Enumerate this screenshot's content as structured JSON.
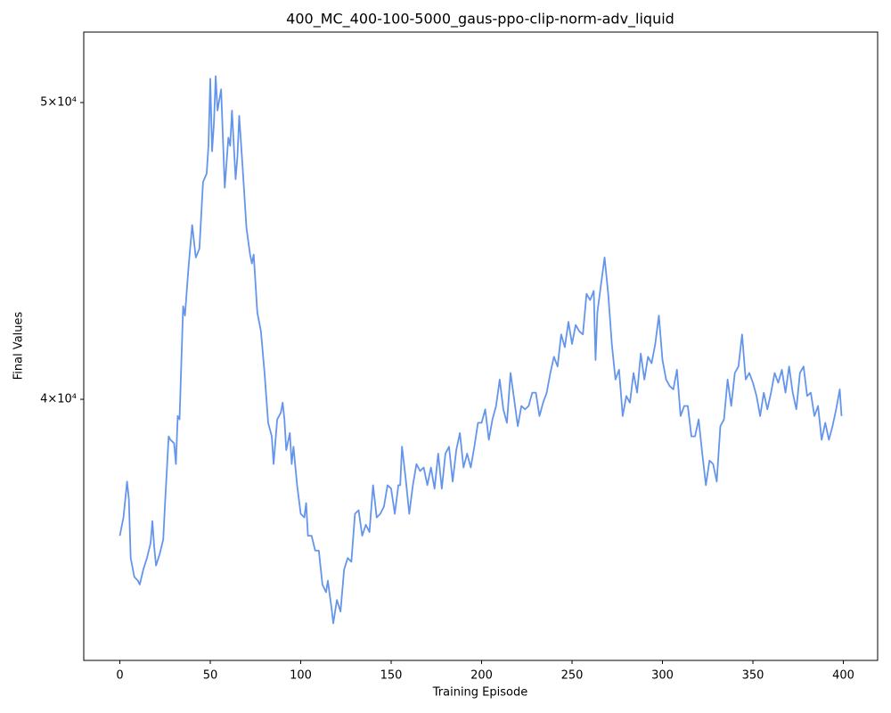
{
  "chart_data": {
    "type": "line",
    "title": "400_MC_400-100-5000_gaus-ppo-clip-norm-adv_liquid",
    "x_label": "Training Episode",
    "y_label": "Final Values",
    "y_scale": "log",
    "xlim": [
      -19.95,
      418.95
    ],
    "ylim": [
      32870,
      52720
    ],
    "xticks": [
      0,
      50,
      100,
      150,
      200,
      250,
      300,
      350,
      400
    ],
    "yticks": [
      {
        "value": 40000,
        "label": "4×10⁴"
      },
      {
        "value": 50000,
        "label": "5×10⁴"
      }
    ],
    "x": [
      0,
      2,
      4,
      5,
      6,
      8,
      10,
      11,
      13,
      15,
      17,
      18,
      19,
      20,
      22,
      24,
      25,
      27,
      28,
      30,
      31,
      32,
      33,
      35,
      36,
      38,
      40,
      42,
      44,
      46,
      48,
      49,
      50,
      51,
      52,
      53,
      54,
      56,
      58,
      60,
      61,
      62,
      64,
      65,
      66,
      68,
      70,
      72,
      73,
      74,
      76,
      78,
      80,
      82,
      84,
      85,
      87,
      89,
      90,
      91,
      92,
      94,
      95,
      96,
      98,
      100,
      102,
      103,
      104,
      106,
      108,
      110,
      112,
      114,
      115,
      117,
      118,
      120,
      122,
      124,
      126,
      128,
      130,
      132,
      134,
      136,
      138,
      140,
      142,
      144,
      146,
      148,
      150,
      152,
      154,
      155,
      156,
      158,
      160,
      162,
      164,
      166,
      168,
      170,
      172,
      174,
      176,
      178,
      180,
      182,
      184,
      186,
      188,
      190,
      192,
      194,
      196,
      198,
      200,
      202,
      204,
      206,
      208,
      210,
      212,
      214,
      216,
      218,
      220,
      222,
      224,
      226,
      228,
      230,
      232,
      234,
      236,
      238,
      240,
      242,
      244,
      246,
      248,
      250,
      252,
      254,
      256,
      258,
      260,
      262,
      263,
      264,
      266,
      268,
      270,
      272,
      274,
      276,
      278,
      280,
      282,
      284,
      286,
      288,
      290,
      292,
      294,
      296,
      298,
      300,
      302,
      304,
      306,
      308,
      310,
      312,
      314,
      316,
      318,
      320,
      322,
      324,
      326,
      328,
      330,
      332,
      334,
      336,
      338,
      340,
      342,
      344,
      346,
      348,
      350,
      352,
      354,
      356,
      358,
      360,
      362,
      364,
      366,
      368,
      370,
      372,
      374,
      376,
      378,
      380,
      382,
      384,
      386,
      388,
      390,
      392,
      394,
      396,
      398,
      399
    ],
    "series": [
      {
        "color": "#6495ed",
        "values": [
          36100,
          36600,
          37600,
          37100,
          35500,
          35000,
          34900,
          34800,
          35200,
          35500,
          35900,
          36500,
          35800,
          35300,
          35600,
          36000,
          37000,
          38900,
          38800,
          38700,
          38100,
          39500,
          39400,
          42900,
          42600,
          44200,
          45600,
          44500,
          44800,
          47100,
          47400,
          48400,
          50900,
          48200,
          49200,
          51000,
          49700,
          50500,
          46900,
          48700,
          48400,
          49700,
          47200,
          48000,
          49500,
          47500,
          45500,
          44600,
          44300,
          44600,
          42700,
          42100,
          40800,
          39300,
          38900,
          38100,
          39400,
          39600,
          39900,
          39400,
          38500,
          39000,
          38100,
          38600,
          37500,
          36700,
          36600,
          37000,
          36100,
          36100,
          35700,
          35700,
          34800,
          34600,
          34900,
          34200,
          33800,
          34400,
          34100,
          35200,
          35500,
          35400,
          36700,
          36800,
          36100,
          36400,
          36200,
          37500,
          36600,
          36700,
          36900,
          37500,
          37400,
          36700,
          37500,
          37500,
          38600,
          37700,
          36700,
          37500,
          38100,
          37900,
          38000,
          37500,
          38000,
          37400,
          38400,
          37400,
          38400,
          38600,
          37600,
          38500,
          39000,
          38000,
          38400,
          38000,
          38600,
          39300,
          39300,
          39700,
          38800,
          39400,
          39800,
          40600,
          39700,
          39300,
          40800,
          40000,
          39200,
          39800,
          39700,
          39800,
          40200,
          40200,
          39500,
          39900,
          40200,
          40800,
          41300,
          41000,
          42000,
          41600,
          42400,
          41700,
          42300,
          42100,
          42000,
          43300,
          43100,
          43400,
          41200,
          42700,
          43600,
          44500,
          43300,
          41700,
          40600,
          40900,
          39500,
          40100,
          39900,
          40800,
          40200,
          41400,
          40600,
          41300,
          41100,
          41700,
          42600,
          41200,
          40600,
          40400,
          40300,
          40900,
          39500,
          39800,
          39800,
          38900,
          38900,
          39400,
          38400,
          37500,
          38200,
          38100,
          37600,
          39200,
          39400,
          40600,
          39800,
          40800,
          41000,
          42000,
          40600,
          40800,
          40500,
          40100,
          39500,
          40200,
          39700,
          40200,
          40800,
          40500,
          40900,
          40200,
          41000,
          40200,
          39700,
          40800,
          41000,
          40100,
          40200,
          39500,
          39800,
          38800,
          39300,
          38800,
          39200,
          39700,
          40300,
          39500
        ]
      }
    ]
  }
}
